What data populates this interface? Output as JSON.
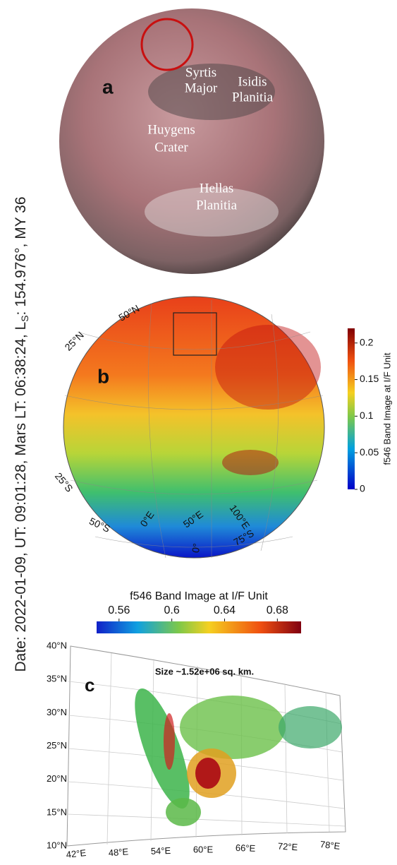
{
  "caption": {
    "prefix": "Date: 2022-01-09, UT: 09:01:28, Mars LT: 06:38:24, L",
    "subscript": "S",
    "suffix": ": 154.976°, MY 36"
  },
  "panel_a": {
    "label": "a",
    "features": [
      [
        "Syrtis",
        "Major"
      ],
      [
        "Isidis",
        "Planitia"
      ],
      [
        "Huygens",
        "Crater"
      ],
      [
        "Hellas",
        "Planitia"
      ]
    ]
  },
  "panel_b": {
    "label": "b",
    "colorbar": {
      "title": "f546 Band Image at I/F Unit",
      "lim": [
        0,
        0.22
      ],
      "ticks": [
        0,
        0.05,
        0.1,
        0.15,
        0.2
      ]
    },
    "grid_labels": [
      "50°N",
      "25°N",
      "25°S",
      "50°S",
      "0°E",
      "50°E",
      "100°E",
      "0°",
      "75°S"
    ]
  },
  "panel_c": {
    "label": "c",
    "annotation": "Size ~1.52e+06 sq. km.",
    "colorbar": {
      "title": "f546 Band Image at I/F Unit",
      "lim": [
        0.543,
        0.698
      ],
      "ticks": [
        0.56,
        0.6,
        0.64,
        0.68
      ]
    },
    "lat_labels": [
      "40°N",
      "35°N",
      "30°N",
      "25°N",
      "20°N",
      "15°N",
      "10°N"
    ],
    "lon_labels": [
      "42°E",
      "48°E",
      "54°E",
      "60°E",
      "66°E",
      "72°E",
      "78°E"
    ]
  }
}
